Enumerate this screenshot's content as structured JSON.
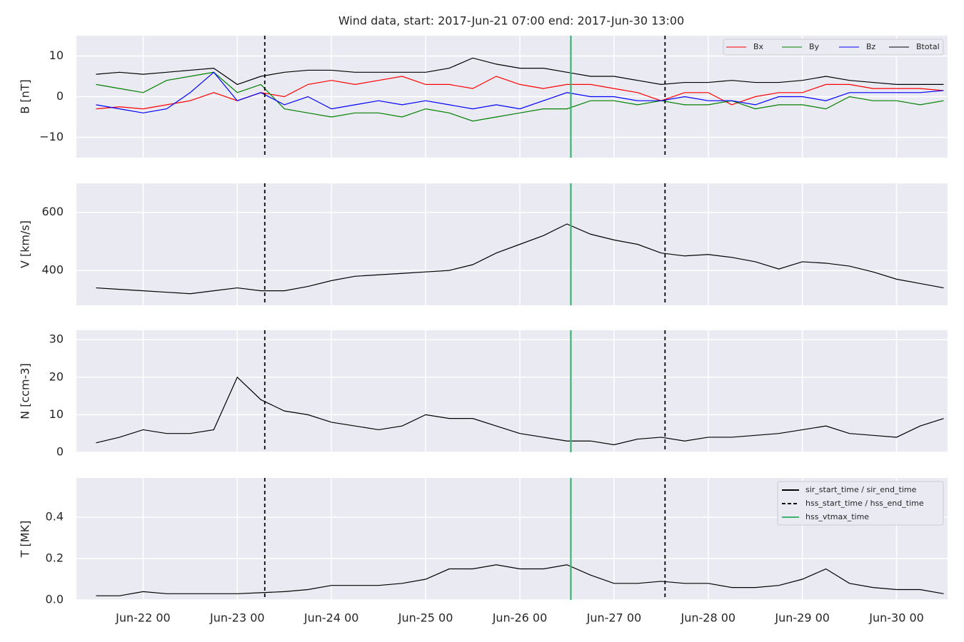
{
  "title": "Wind data, start: 2017-Jun-21 07:00  end: 2017-Jun-30 13:00",
  "chart_data": [
    {
      "type": "line",
      "ylabel": "B [nT]",
      "x": [
        "Jun-21 12",
        "Jun-21 18",
        "Jun-22 00",
        "Jun-22 06",
        "Jun-22 12",
        "Jun-22 18",
        "Jun-23 00",
        "Jun-23 06",
        "Jun-23 12",
        "Jun-23 18",
        "Jun-24 00",
        "Jun-24 06",
        "Jun-24 12",
        "Jun-24 18",
        "Jun-25 00",
        "Jun-25 06",
        "Jun-25 12",
        "Jun-25 18",
        "Jun-26 00",
        "Jun-26 06",
        "Jun-26 12",
        "Jun-26 18",
        "Jun-27 00",
        "Jun-27 06",
        "Jun-27 12",
        "Jun-27 18",
        "Jun-28 00",
        "Jun-28 06",
        "Jun-28 12",
        "Jun-28 18",
        "Jun-29 00",
        "Jun-29 06",
        "Jun-29 12",
        "Jun-29 18",
        "Jun-30 00",
        "Jun-30 06",
        "Jun-30 12"
      ],
      "series": [
        {
          "name": "Bx",
          "color": "#ff0000",
          "values": [
            -3,
            -2.5,
            -3,
            -2,
            -1,
            1,
            -1,
            1,
            0,
            3,
            4,
            3,
            4,
            5,
            3,
            3,
            2,
            5,
            3,
            2,
            3,
            3,
            2,
            1,
            -1,
            1,
            1,
            -2,
            0,
            1,
            1,
            3,
            3,
            2,
            2,
            2,
            1.5
          ]
        },
        {
          "name": "By",
          "color": "#008000",
          "values": [
            3,
            2,
            1,
            4,
            5,
            6,
            1,
            3,
            -3,
            -4,
            -5,
            -4,
            -4,
            -5,
            -3,
            -4,
            -6,
            -5,
            -4,
            -3,
            -3,
            -1,
            -1,
            -2,
            -1,
            -2,
            -2,
            -1,
            -3,
            -2,
            -2,
            -3,
            0,
            -1,
            -1,
            -2,
            -1
          ]
        },
        {
          "name": "Bz",
          "color": "#0000ff",
          "values": [
            -2,
            -3,
            -4,
            -3,
            1,
            6,
            -1,
            1,
            -2,
            0,
            -3,
            -2,
            -1,
            -2,
            -1,
            -2,
            -3,
            -2,
            -3,
            -1,
            1,
            0,
            0,
            -1,
            -1,
            0,
            -1,
            -1,
            -2,
            0,
            0,
            -1,
            1,
            1,
            1,
            1,
            1.5
          ]
        },
        {
          "name": "Btotal",
          "color": "#000000",
          "values": [
            5.5,
            6,
            5.5,
            6,
            6.5,
            7,
            3,
            5,
            6,
            6.5,
            6.5,
            6,
            6,
            6,
            6,
            7,
            9.5,
            8,
            7,
            7,
            6,
            5,
            5,
            4,
            3,
            3.5,
            3.5,
            4,
            3.5,
            3.5,
            4,
            5,
            4,
            3.5,
            3,
            3,
            3
          ]
        }
      ],
      "legend": "upper right",
      "xlim": [
        "Jun-21 07",
        "Jun-30 13"
      ],
      "xticks": [
        "Jun-22 00",
        "Jun-23 00",
        "Jun-24 00",
        "Jun-25 00",
        "Jun-26 00",
        "Jun-27 00",
        "Jun-28 00",
        "Jun-29 00",
        "Jun-30 00"
      ],
      "ylim": [
        -15,
        15
      ],
      "yticks": [
        {
          "value": -10,
          "label": "−10"
        },
        0,
        10
      ],
      "grid": true
    },
    {
      "type": "line",
      "ylabel": "V [km/s]",
      "x": [
        "Jun-21 12",
        "Jun-21 18",
        "Jun-22 00",
        "Jun-22 06",
        "Jun-22 12",
        "Jun-22 18",
        "Jun-23 00",
        "Jun-23 06",
        "Jun-23 12",
        "Jun-23 18",
        "Jun-24 00",
        "Jun-24 06",
        "Jun-24 12",
        "Jun-24 18",
        "Jun-25 00",
        "Jun-25 06",
        "Jun-25 12",
        "Jun-25 18",
        "Jun-26 00",
        "Jun-26 06",
        "Jun-26 12",
        "Jun-26 18",
        "Jun-27 00",
        "Jun-27 06",
        "Jun-27 12",
        "Jun-27 18",
        "Jun-28 00",
        "Jun-28 06",
        "Jun-28 12",
        "Jun-28 18",
        "Jun-29 00",
        "Jun-29 06",
        "Jun-29 12",
        "Jun-29 18",
        "Jun-30 00",
        "Jun-30 06",
        "Jun-30 12"
      ],
      "values": [
        340,
        335,
        330,
        325,
        320,
        330,
        340,
        330,
        330,
        345,
        365,
        380,
        385,
        390,
        395,
        400,
        420,
        460,
        490,
        520,
        560,
        525,
        505,
        490,
        460,
        450,
        455,
        445,
        430,
        405,
        430,
        425,
        415,
        395,
        370,
        355,
        340
      ],
      "color": "#000000",
      "xlim": [
        "Jun-21 07",
        "Jun-30 13"
      ],
      "xticks": [
        "Jun-22 00",
        "Jun-23 00",
        "Jun-24 00",
        "Jun-25 00",
        "Jun-26 00",
        "Jun-27 00",
        "Jun-28 00",
        "Jun-29 00",
        "Jun-30 00"
      ],
      "ylim": [
        280,
        700
      ],
      "yticks": [
        400,
        600
      ],
      "grid": true
    },
    {
      "type": "line",
      "ylabel": "N [ccm-3]",
      "x": [
        "Jun-21 12",
        "Jun-21 18",
        "Jun-22 00",
        "Jun-22 06",
        "Jun-22 12",
        "Jun-22 18",
        "Jun-23 00",
        "Jun-23 06",
        "Jun-23 12",
        "Jun-23 18",
        "Jun-24 00",
        "Jun-24 06",
        "Jun-24 12",
        "Jun-24 18",
        "Jun-25 00",
        "Jun-25 06",
        "Jun-25 12",
        "Jun-25 18",
        "Jun-26 00",
        "Jun-26 06",
        "Jun-26 12",
        "Jun-26 18",
        "Jun-27 00",
        "Jun-27 06",
        "Jun-27 12",
        "Jun-27 18",
        "Jun-28 00",
        "Jun-28 06",
        "Jun-28 12",
        "Jun-28 18",
        "Jun-29 00",
        "Jun-29 06",
        "Jun-29 12",
        "Jun-29 18",
        "Jun-30 00",
        "Jun-30 06",
        "Jun-30 12"
      ],
      "values": [
        2.5,
        4,
        6,
        5,
        5,
        6,
        20,
        14,
        11,
        10,
        8,
        7,
        6,
        7,
        10,
        9,
        9,
        7,
        5,
        4,
        3,
        3,
        2,
        3.5,
        4,
        3,
        4,
        4,
        4.5,
        5,
        6,
        7,
        5,
        4.5,
        4,
        7,
        9
      ],
      "color": "#000000",
      "xlim": [
        "Jun-21 07",
        "Jun-30 13"
      ],
      "xticks": [
        "Jun-22 00",
        "Jun-23 00",
        "Jun-24 00",
        "Jun-25 00",
        "Jun-26 00",
        "Jun-27 00",
        "Jun-28 00",
        "Jun-29 00",
        "Jun-30 00"
      ],
      "ylim": [
        0,
        32.5
      ],
      "yticks": [
        0,
        10,
        20,
        30
      ],
      "grid": true
    },
    {
      "type": "line",
      "ylabel": "T [MK]",
      "x": [
        "Jun-21 12",
        "Jun-21 18",
        "Jun-22 00",
        "Jun-22 06",
        "Jun-22 12",
        "Jun-22 18",
        "Jun-23 00",
        "Jun-23 06",
        "Jun-23 12",
        "Jun-23 18",
        "Jun-24 00",
        "Jun-24 06",
        "Jun-24 12",
        "Jun-24 18",
        "Jun-25 00",
        "Jun-25 06",
        "Jun-25 12",
        "Jun-25 18",
        "Jun-26 00",
        "Jun-26 06",
        "Jun-26 12",
        "Jun-26 18",
        "Jun-27 00",
        "Jun-27 06",
        "Jun-27 12",
        "Jun-27 18",
        "Jun-28 00",
        "Jun-28 06",
        "Jun-28 12",
        "Jun-28 18",
        "Jun-29 00",
        "Jun-29 06",
        "Jun-29 12",
        "Jun-29 18",
        "Jun-30 00",
        "Jun-30 06",
        "Jun-30 12"
      ],
      "values": [
        0.02,
        0.02,
        0.04,
        0.03,
        0.03,
        0.03,
        0.03,
        0.035,
        0.04,
        0.05,
        0.07,
        0.07,
        0.07,
        0.08,
        0.1,
        0.15,
        0.15,
        0.17,
        0.15,
        0.15,
        0.17,
        0.12,
        0.08,
        0.08,
        0.09,
        0.08,
        0.08,
        0.06,
        0.06,
        0.07,
        0.1,
        0.15,
        0.08,
        0.06,
        0.05,
        0.05,
        0.03
      ],
      "color": "#000000",
      "xlim": [
        "Jun-21 07",
        "Jun-30 13"
      ],
      "xticks": [
        "Jun-22 00",
        "Jun-23 00",
        "Jun-24 00",
        "Jun-25 00",
        "Jun-26 00",
        "Jun-27 00",
        "Jun-28 00",
        "Jun-29 00",
        "Jun-30 00"
      ],
      "ylim": [
        0,
        0.59
      ],
      "yticks": [
        {
          "value": 0,
          "label": "0.0"
        },
        0.2,
        0.4
      ],
      "grid": true
    }
  ],
  "time_markers": {
    "legend": [
      {
        "label": "sir_start_time / sir_end_time",
        "color": "#000000",
        "style": "solid"
      },
      {
        "label": "hss_start_time / hss_end_time",
        "color": "#000000",
        "style": "dashed"
      },
      {
        "label": "hss_vtmax_time",
        "color": "#3cb371",
        "style": "solid"
      }
    ],
    "lines": [
      {
        "x": "Jun-23 07",
        "kind": 1
      },
      {
        "x": "Jun-27 13",
        "kind": 1
      },
      {
        "x": "Jun-26 13",
        "kind": 2
      }
    ]
  }
}
